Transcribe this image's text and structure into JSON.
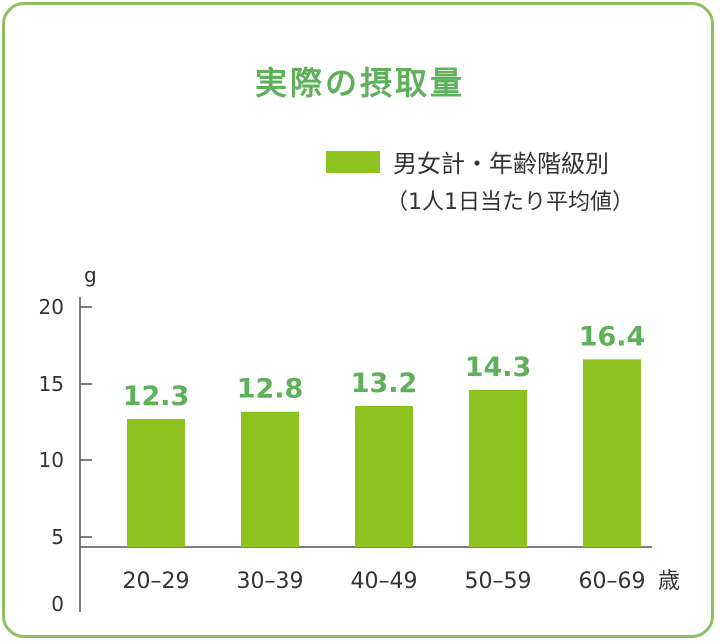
{
  "title": "実際の摂取量",
  "legend": {
    "label": "男女計・年齢階級別",
    "sublabel": "（1人1日当たり平均値）"
  },
  "colors": {
    "bar": "#8dc21f",
    "label": "#5fb05a",
    "frame": "#8cc063",
    "axis": "#555555"
  },
  "chart_data": {
    "type": "bar",
    "categories": [
      "20–29",
      "30–39",
      "40–49",
      "50–59",
      "60–69"
    ],
    "series": [
      {
        "name": "男女計・年齢階級別",
        "values": [
          12.3,
          12.8,
          13.2,
          14.3,
          16.4
        ]
      }
    ],
    "title": "実際の摂取量",
    "ylabel": "g",
    "xlabel": "歳",
    "yticks": [
      "0",
      "5",
      "10",
      "15",
      "20"
    ],
    "ylim": [
      0,
      20
    ],
    "axis_break": true,
    "grid": false,
    "legend_position": "top-right"
  }
}
